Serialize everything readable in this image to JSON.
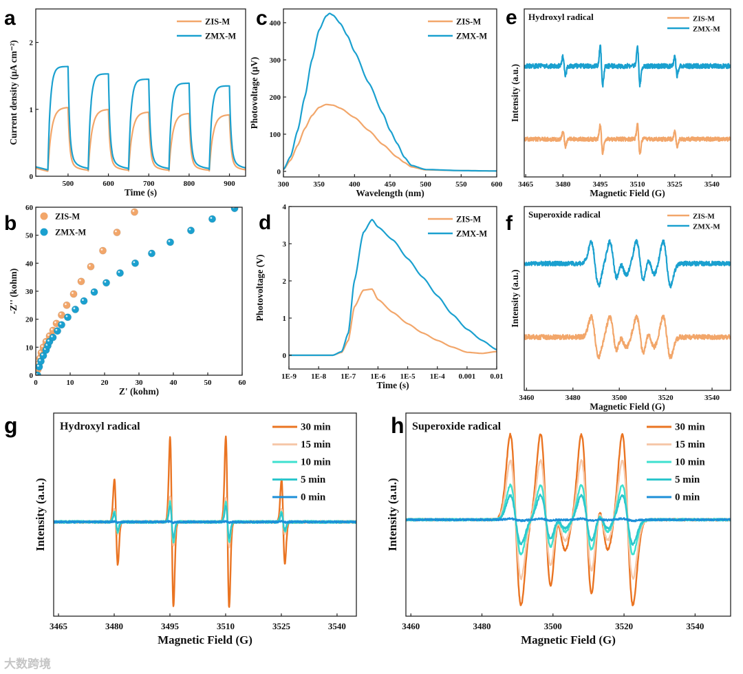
{
  "watermark": "大数跨境",
  "colors": {
    "zis": "#f2a66a",
    "zmx": "#1aa0cf",
    "t30": "#ea7422",
    "t15": "#f6c8aa",
    "t10": "#3ee0cf",
    "t5": "#2cc6cc",
    "t0": "#1c8fd8"
  },
  "chart_data": [
    {
      "id": "a",
      "letter": "a",
      "type": "line",
      "xlabel": "Time (s)",
      "ylabel": "Current density (μA cm⁻²)",
      "xlim": [
        420,
        940
      ],
      "ylim": [
        0,
        2.5
      ],
      "xticks": [
        500,
        600,
        700,
        800,
        900
      ],
      "yticks": [
        0,
        1,
        2
      ],
      "light_on_times": [
        450,
        550,
        650,
        750,
        850
      ],
      "light_off_times": [
        500,
        600,
        700,
        800,
        900
      ],
      "baseline": 0.1,
      "series": [
        {
          "name": "ZIS-M",
          "color": "zis",
          "plateaus": [
            1.05,
            1.02,
            0.98,
            0.96,
            0.94
          ]
        },
        {
          "name": "ZMX-M",
          "color": "zmx",
          "plateaus": [
            1.64,
            1.53,
            1.45,
            1.39,
            1.35
          ]
        }
      ],
      "legend": "top-right"
    },
    {
      "id": "b",
      "letter": "b",
      "type": "scatter",
      "xlabel": "Z' (kohm)",
      "ylabel": "-Z'' (kohm)",
      "xlim": [
        0,
        60
      ],
      "ylim": [
        0,
        60
      ],
      "xticks": [
        0,
        10,
        20,
        30,
        40,
        50,
        60
      ],
      "yticks": [
        0,
        10,
        20,
        30,
        40,
        50,
        60
      ],
      "series": [
        {
          "name": "ZIS-M",
          "color": "zis",
          "points": [
            [
              0.5,
              0
            ],
            [
              0.6,
              2
            ],
            [
              0.8,
              4
            ],
            [
              1.2,
              6
            ],
            [
              1.6,
              8
            ],
            [
              2.2,
              10
            ],
            [
              3,
              12
            ],
            [
              4,
              14
            ],
            [
              5,
              16
            ],
            [
              6,
              18.5
            ],
            [
              7.5,
              21.5
            ],
            [
              9,
              25
            ],
            [
              11,
              29
            ],
            [
              13.2,
              33.5
            ],
            [
              16,
              38.8
            ],
            [
              19.5,
              44.5
            ],
            [
              23.6,
              51
            ],
            [
              28.7,
              58.3
            ]
          ]
        },
        {
          "name": "ZMX-M",
          "color": "zmx",
          "points": [
            [
              0.5,
              0
            ],
            [
              1,
              3
            ],
            [
              1.5,
              5
            ],
            [
              2.2,
              7
            ],
            [
              3,
              9
            ],
            [
              3.5,
              10.5
            ],
            [
              4,
              12
            ],
            [
              5,
              13.5
            ],
            [
              6.3,
              15.8
            ],
            [
              7.5,
              18
            ],
            [
              9.3,
              20.7
            ],
            [
              11.5,
              23.5
            ],
            [
              14,
              26.5
            ],
            [
              17,
              29.7
            ],
            [
              20.5,
              33
            ],
            [
              24.5,
              36.5
            ],
            [
              28.9,
              40
            ],
            [
              33.7,
              43.5
            ],
            [
              39.1,
              47.5
            ],
            [
              45.1,
              51.7
            ],
            [
              51.3,
              55.8
            ],
            [
              57.8,
              59.6
            ]
          ]
        }
      ],
      "legend": "top-left"
    },
    {
      "id": "c",
      "letter": "c",
      "type": "line",
      "xlabel": "Wavelength (nm)",
      "ylabel": "Photovoltage (μV)",
      "xlim": [
        300,
        600
      ],
      "ylim": [
        -15,
        437
      ],
      "xticks": [
        300,
        350,
        400,
        450,
        500,
        550,
        600
      ],
      "yticks": [
        0,
        100,
        200,
        300,
        400
      ],
      "series": [
        {
          "name": "ZIS-M",
          "color": "zis",
          "points": [
            [
              300,
              5
            ],
            [
              310,
              30
            ],
            [
              320,
              70
            ],
            [
              330,
              115
            ],
            [
              340,
              150
            ],
            [
              350,
              172
            ],
            [
              360,
              180
            ],
            [
              370,
              178
            ],
            [
              380,
              170
            ],
            [
              400,
              145
            ],
            [
              420,
              110
            ],
            [
              440,
              72
            ],
            [
              460,
              38
            ],
            [
              470,
              24
            ],
            [
              480,
              12
            ],
            [
              500,
              4
            ],
            [
              550,
              2
            ],
            [
              600,
              1
            ]
          ]
        },
        {
          "name": "ZMX-M",
          "color": "zmx",
          "points": [
            [
              300,
              5
            ],
            [
              310,
              40
            ],
            [
              320,
              110
            ],
            [
              330,
              200
            ],
            [
              340,
              300
            ],
            [
              350,
              380
            ],
            [
              360,
              418
            ],
            [
              365,
              425
            ],
            [
              370,
              420
            ],
            [
              380,
              398
            ],
            [
              390,
              365
            ],
            [
              400,
              322
            ],
            [
              420,
              238
            ],
            [
              440,
              155
            ],
            [
              450,
              110
            ],
            [
              460,
              75
            ],
            [
              470,
              38
            ],
            [
              480,
              16
            ],
            [
              500,
              5
            ],
            [
              550,
              2
            ],
            [
              600,
              1
            ]
          ]
        }
      ],
      "legend": "top-right"
    },
    {
      "id": "d",
      "letter": "d",
      "type": "line",
      "xlabel": "Time (s)",
      "ylabel": "Photovoltage (V)",
      "xscale": "log",
      "xlim": [
        1e-09,
        0.01
      ],
      "ylim": [
        -0.37,
        4
      ],
      "xticks": [
        1e-09,
        1e-08,
        1e-07,
        1e-06,
        1e-05,
        0.0001,
        0.001,
        0.01
      ],
      "xticklabels": [
        "1E-9",
        "1E-8",
        "1E-7",
        "1E-6",
        "1E-5",
        "1E-4",
        "0.001",
        "0.01"
      ],
      "yticks": [
        0,
        1,
        2,
        3,
        4
      ],
      "series": [
        {
          "name": "ZIS-M",
          "color": "zis",
          "points": [
            [
              1e-09,
              0
            ],
            [
              3e-08,
              0
            ],
            [
              6e-08,
              0.08
            ],
            [
              1e-07,
              0.4
            ],
            [
              1.6e-07,
              1.3
            ],
            [
              3.2e-07,
              1.75
            ],
            [
              6.3e-07,
              1.78
            ],
            [
              1e-06,
              1.5
            ],
            [
              3.2e-06,
              1.15
            ],
            [
              1e-05,
              0.85
            ],
            [
              3.2e-05,
              0.6
            ],
            [
              0.0001,
              0.4
            ],
            [
              0.00032,
              0.22
            ],
            [
              0.001,
              0.08
            ],
            [
              0.0032,
              0.05
            ],
            [
              0.01,
              0.1
            ]
          ]
        },
        {
          "name": "ZMX-M",
          "color": "zmx",
          "points": [
            [
              1e-09,
              0
            ],
            [
              3e-08,
              0
            ],
            [
              6e-08,
              0.1
            ],
            [
              1e-07,
              0.6
            ],
            [
              1.6e-07,
              2.0
            ],
            [
              3.2e-07,
              3.3
            ],
            [
              6.3e-07,
              3.65
            ],
            [
              1e-06,
              3.45
            ],
            [
              3.2e-06,
              3.1
            ],
            [
              1e-05,
              2.6
            ],
            [
              3.2e-05,
              2.1
            ],
            [
              0.0001,
              1.6
            ],
            [
              0.00032,
              1.1
            ],
            [
              0.001,
              0.7
            ],
            [
              0.0032,
              0.4
            ],
            [
              0.01,
              0.15
            ]
          ]
        }
      ],
      "legend": "top-right"
    },
    {
      "id": "e",
      "letter": "e",
      "type": "line",
      "title": "Hydroxyl radical",
      "xlabel": "Magnetic Field (G)",
      "ylabel": "Intensity (a.u.)",
      "xlim": [
        3464.4,
        3547.5
      ],
      "ylim": [
        0,
        10
      ],
      "xticks": [
        3465,
        3480,
        3495,
        3510,
        3525,
        3540
      ],
      "yticks": [],
      "line_positions_G": [
        3480.5,
        3495.5,
        3510.5,
        3525.5
      ],
      "relative_intensity": [
        1,
        2,
        2,
        1
      ],
      "linewidth_G": 0.5,
      "series": [
        {
          "name": "ZIS-M",
          "color": "zis",
          "offset": 2.25,
          "amplitude": 0.85,
          "noise": 0.12
        },
        {
          "name": "ZMX-M",
          "color": "zmx",
          "offset": 6.6,
          "amplitude": 1.15,
          "noise": 0.14
        }
      ],
      "legend": "top-right"
    },
    {
      "id": "f",
      "letter": "f",
      "type": "line",
      "title": "Superoxide radical",
      "xlabel": "Magnetic Field (G)",
      "ylabel": "Intensity (a.u.)",
      "xlim": [
        3459,
        3548
      ],
      "ylim": [
        0,
        10
      ],
      "xticks": [
        3460,
        3480,
        3500,
        3520,
        3540
      ],
      "yticks": [],
      "line_positions_G": [
        3489.5,
        3497.5,
        3501.5,
        3509,
        3513.5,
        3520.5
      ],
      "relative_intensity": [
        1,
        1,
        0.5,
        1,
        0.5,
        1
      ],
      "linewidth_G": 1.6,
      "series": [
        {
          "name": "ZIS-M",
          "color": "zis",
          "offset": 2.9,
          "amplitude": 1.1,
          "noise": 0.13
        },
        {
          "name": "ZMX-M",
          "color": "zmx",
          "offset": 6.9,
          "amplitude": 1.2,
          "noise": 0.12
        }
      ],
      "legend": "top-right"
    },
    {
      "id": "g",
      "letter": "g",
      "type": "line",
      "title": "Hydroxyl radical",
      "xlabel": "Magnetic Field (G)",
      "ylabel": "Intensity (a.u.)",
      "xlim": [
        3463.7,
        3545.2
      ],
      "ylim": [
        0,
        10
      ],
      "xticks": [
        3465,
        3480,
        3495,
        3510,
        3525,
        3540
      ],
      "yticks": [],
      "line_positions_G": [
        3480.5,
        3495.5,
        3510.5,
        3525.5
      ],
      "relative_intensity": [
        0.5,
        1,
        1,
        0.5
      ],
      "linewidth_G": 0.45,
      "series": [
        {
          "name": "30 min",
          "color": "t30",
          "offset": 4.64,
          "amplitude": 4.2,
          "noise": 0.05
        },
        {
          "name": "15 min",
          "color": "t15",
          "offset": 4.64,
          "amplitude": 1.2,
          "noise": 0.06
        },
        {
          "name": "10 min",
          "color": "t10",
          "offset": 4.64,
          "amplitude": 1.0,
          "noise": 0.06
        },
        {
          "name": "5 min",
          "color": "t5",
          "offset": 4.64,
          "amplitude": 0.8,
          "noise": 0.05
        },
        {
          "name": "0 min",
          "color": "t0",
          "offset": 4.64,
          "amplitude": 0.04,
          "noise": 0.04
        }
      ],
      "legend": "top-right"
    },
    {
      "id": "h",
      "letter": "h",
      "type": "line",
      "title": "Superoxide radical",
      "xlabel": "Magnetic Field (G)",
      "ylabel": "Intensity (a.u.)",
      "xlim": [
        3458.6,
        3550
      ],
      "ylim": [
        0,
        10
      ],
      "xticks": [
        3460,
        3480,
        3500,
        3520,
        3540
      ],
      "yticks": [],
      "line_positions_G": [
        3489.5,
        3498,
        3502,
        3509.5,
        3514,
        3521
      ],
      "relative_intensity": [
        1,
        1,
        0.35,
        1,
        0.35,
        1
      ],
      "linewidth_G": 1.5,
      "series": [
        {
          "name": "30 min",
          "color": "t30",
          "offset": 4.75,
          "amplitude": 4.2,
          "noise": 0.05
        },
        {
          "name": "15 min",
          "color": "t15",
          "offset": 4.75,
          "amplitude": 2.9,
          "noise": 0.05
        },
        {
          "name": "10 min",
          "color": "t10",
          "offset": 4.75,
          "amplitude": 1.7,
          "noise": 0.05
        },
        {
          "name": "5 min",
          "color": "t5",
          "offset": 4.75,
          "amplitude": 1.2,
          "noise": 0.05
        },
        {
          "name": "0 min",
          "color": "t0",
          "offset": 4.75,
          "amplitude": 0.05,
          "noise": 0.04
        }
      ],
      "legend": "top-right"
    }
  ]
}
